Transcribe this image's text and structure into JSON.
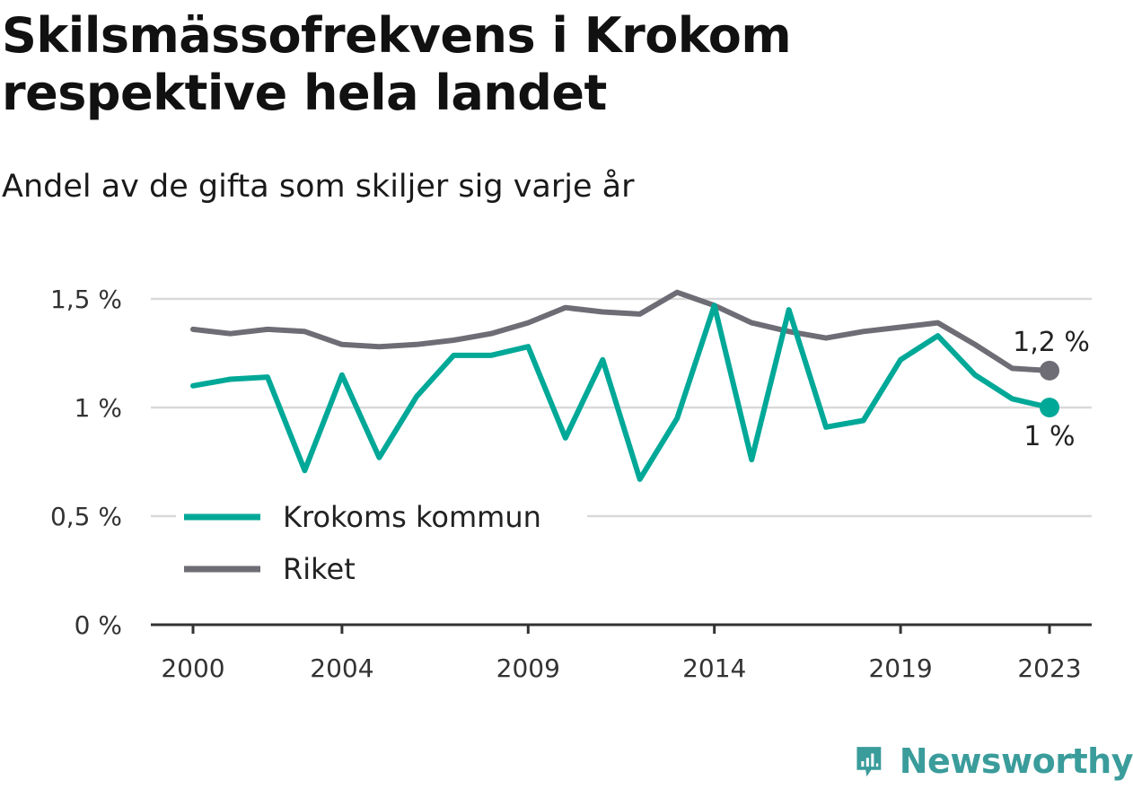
{
  "title": "Skilsmässofrekvens i Krokom respektive hela landet",
  "subtitle": "Andel av de gifta som skiljer sig varje år",
  "brand": {
    "name": "Newsworthy",
    "icon": "newsworthy-logo-icon",
    "color": "#3a9c9b"
  },
  "chart_data": {
    "type": "line",
    "title": "Skilsmässofrekvens i Krokom respektive hela landet",
    "subtitle": "Andel av de gifta som skiljer sig varje år",
    "xlabel": "",
    "ylabel": "",
    "x": [
      2000,
      2001,
      2002,
      2003,
      2004,
      2005,
      2006,
      2007,
      2008,
      2009,
      2010,
      2011,
      2012,
      2013,
      2014,
      2015,
      2016,
      2017,
      2018,
      2019,
      2020,
      2021,
      2022,
      2023
    ],
    "xticks": [
      {
        "value": 2000,
        "label": "2000"
      },
      {
        "value": 2004,
        "label": "2004"
      },
      {
        "value": 2009,
        "label": "2009"
      },
      {
        "value": 2014,
        "label": "2014"
      },
      {
        "value": 2019,
        "label": "2019"
      },
      {
        "value": 2023,
        "label": "2023"
      }
    ],
    "yticks": [
      {
        "value": 0,
        "label": "0 %"
      },
      {
        "value": 0.5,
        "label": "0,5 %"
      },
      {
        "value": 1.0,
        "label": "1 %"
      },
      {
        "value": 1.5,
        "label": "1,5 %"
      }
    ],
    "ylim": [
      0,
      1.5
    ],
    "grid": true,
    "legend_position": "bottom-left",
    "series": [
      {
        "name": "Krokoms kommun",
        "color": "#00a898",
        "values": [
          1.1,
          1.13,
          1.14,
          0.71,
          1.15,
          0.77,
          1.05,
          1.24,
          1.24,
          1.28,
          0.86,
          1.22,
          0.67,
          0.95,
          1.47,
          0.76,
          1.45,
          0.91,
          0.94,
          1.22,
          1.33,
          1.15,
          1.04,
          1.0
        ],
        "end_label": "1 %"
      },
      {
        "name": "Riket",
        "color": "#6e6d75",
        "values": [
          1.36,
          1.34,
          1.36,
          1.35,
          1.29,
          1.28,
          1.29,
          1.31,
          1.34,
          1.39,
          1.46,
          1.44,
          1.43,
          1.53,
          1.47,
          1.39,
          1.35,
          1.32,
          1.35,
          1.37,
          1.39,
          1.29,
          1.18,
          1.17
        ],
        "end_label": "1,2 %"
      }
    ]
  }
}
